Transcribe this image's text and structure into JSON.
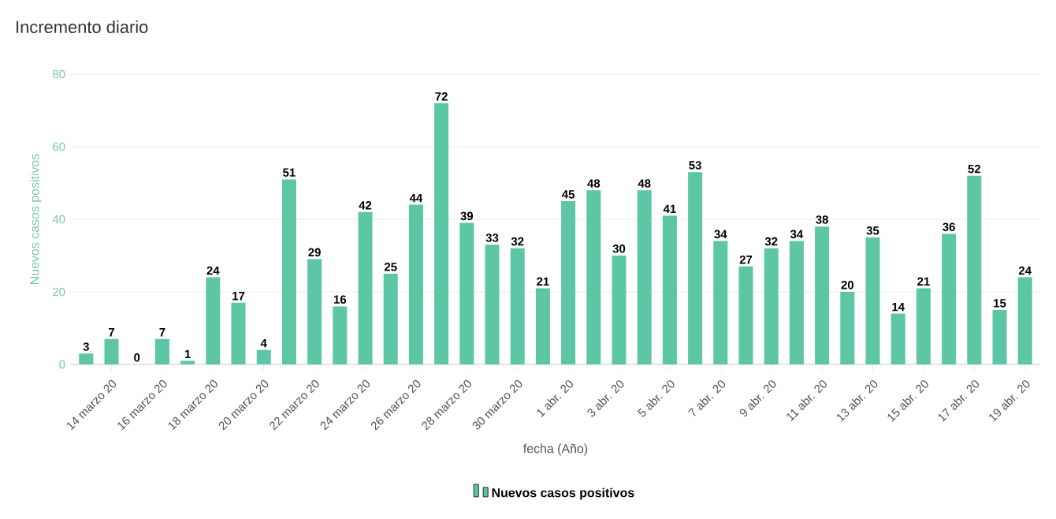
{
  "chart_data": {
    "type": "bar",
    "title": "Incremento diario",
    "xlabel": "fecha (Año)",
    "ylabel": "Nuevos casos positivos",
    "categories": [
      null,
      "14 marzo 20",
      null,
      "16 marzo 20",
      null,
      "18 marzo 20",
      null,
      "20 marzo 20",
      null,
      "22 marzo 20",
      null,
      "24 marzo 20",
      null,
      "26 marzo 20",
      null,
      "28 marzo 20",
      null,
      "30 marzo 20",
      null,
      "1 abr. 20",
      null,
      "3 abr. 20",
      null,
      "5 abr. 20",
      null,
      "7 abr. 20",
      null,
      "9 abr. 20",
      null,
      "11 abr. 20",
      null,
      "13 abr. 20",
      null,
      "15 abr. 20",
      null,
      "17 abr. 20",
      null,
      "19 abr. 20"
    ],
    "series": [
      {
        "name": "Nuevos casos positivos",
        "color": "#5cc6a5",
        "values": [
          3,
          7,
          0,
          7,
          1,
          24,
          17,
          4,
          51,
          29,
          16,
          42,
          25,
          44,
          72,
          39,
          33,
          32,
          21,
          45,
          48,
          30,
          48,
          41,
          53,
          34,
          27,
          32,
          34,
          38,
          20,
          35,
          14,
          21,
          36,
          52,
          15,
          24
        ]
      }
    ],
    "ylim": [
      0,
      80
    ],
    "yticks": [
      0,
      20,
      40,
      60,
      80
    ],
    "grid": "y",
    "legend": "bottom",
    "data_labels": true
  }
}
